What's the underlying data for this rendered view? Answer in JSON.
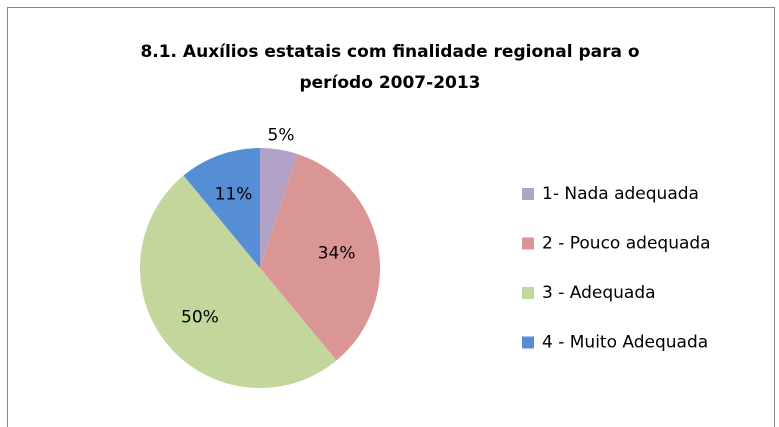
{
  "chart_data": {
    "type": "pie",
    "title": [
      "8.1. Auxílios estatais com finalidade regional para o",
      "período 2007-2013"
    ],
    "categories": [
      "1- Nada adequada",
      "2 - Pouco adequada",
      "3 - Adequada",
      "4 - Muito Adequada"
    ],
    "values": [
      5,
      34,
      50,
      11
    ],
    "value_labels": [
      "5%",
      "34%",
      "50%",
      "11%"
    ],
    "colors": [
      "#b3a2c7",
      "#d99694",
      "#c3d69b",
      "#558ed5"
    ],
    "legend": "right"
  }
}
